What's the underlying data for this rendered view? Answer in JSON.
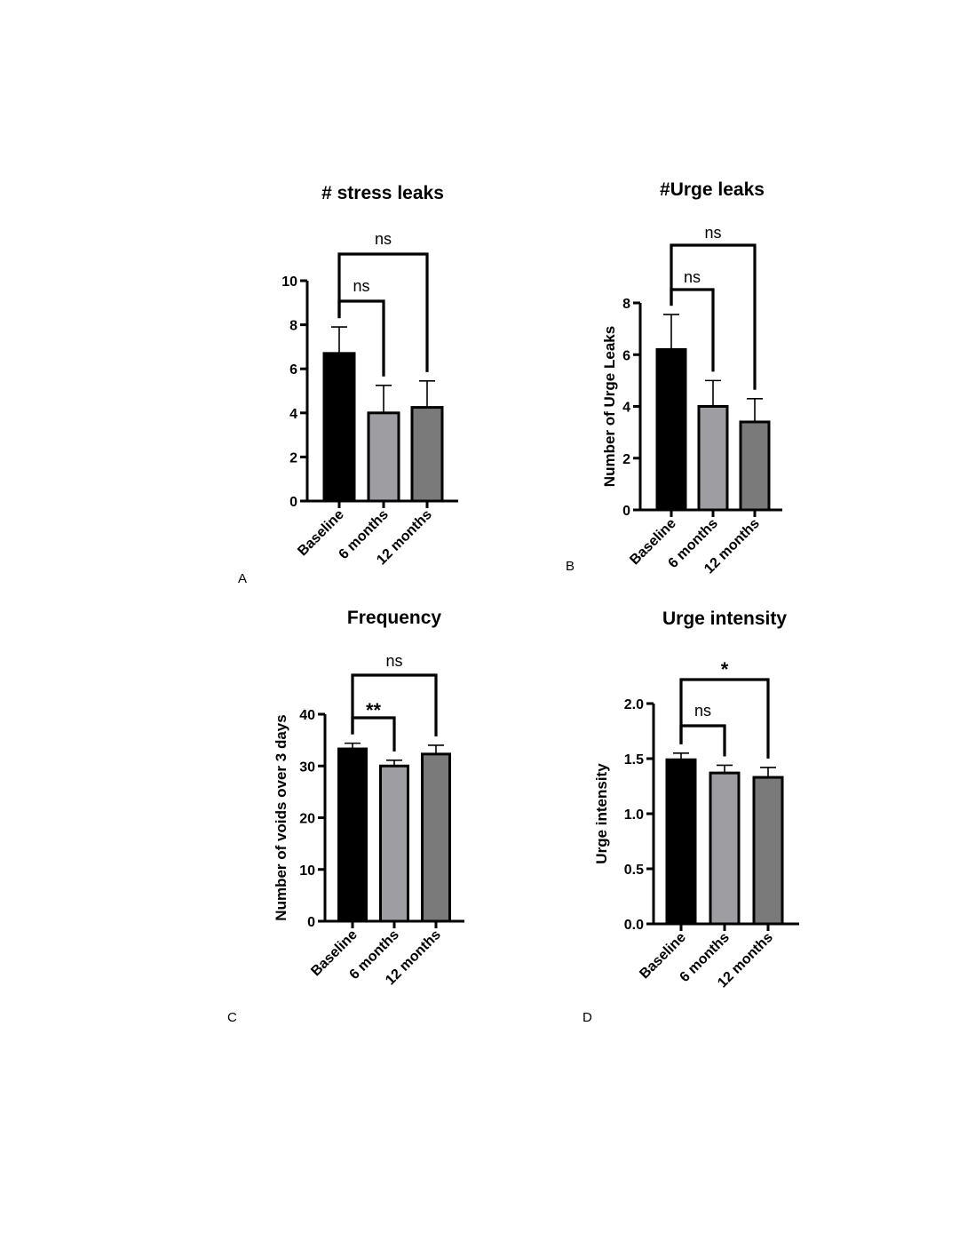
{
  "chart_data": [
    {
      "panel": "A",
      "type": "bar",
      "title": "# stress leaks",
      "ylabel": "",
      "categories": [
        "Baseline",
        "6 months",
        "12 months"
      ],
      "values": [
        6.7,
        4.0,
        4.25
      ],
      "errors": [
        1.2,
        1.25,
        1.2
      ],
      "ylim": [
        0,
        10
      ],
      "yticks": [
        "0",
        "2",
        "4",
        "6",
        "8",
        "10"
      ],
      "bar_colors": [
        "#000000",
        "#9e9ea2",
        "#7a7a7a"
      ],
      "comparisons": [
        {
          "from": "Baseline",
          "to": "6 months",
          "label": "ns"
        },
        {
          "from": "Baseline",
          "to": "12 months",
          "label": "ns"
        }
      ]
    },
    {
      "panel": "B",
      "type": "bar",
      "title": "#Urge leaks",
      "ylabel": "Number of  Urge Leaks",
      "categories": [
        "Baseline",
        "6 months",
        "12 months"
      ],
      "values": [
        6.2,
        4.0,
        3.4
      ],
      "errors": [
        1.35,
        1.0,
        0.9
      ],
      "ylim": [
        0,
        8
      ],
      "yticks": [
        "0",
        "2",
        "4",
        "6",
        "8"
      ],
      "bar_colors": [
        "#000000",
        "#9e9ea2",
        "#7a7a7a"
      ],
      "comparisons": [
        {
          "from": "Baseline",
          "to": "6 months",
          "label": "ns"
        },
        {
          "from": "Baseline",
          "to": "12 months",
          "label": "ns"
        }
      ]
    },
    {
      "panel": "C",
      "type": "bar",
      "title": "Frequency",
      "ylabel": "Number of voids over 3 days",
      "categories": [
        "Baseline",
        "6 months",
        "12 months"
      ],
      "values": [
        33.3,
        30.0,
        32.3
      ],
      "errors": [
        1.1,
        1.1,
        1.7
      ],
      "ylim": [
        0,
        40
      ],
      "yticks": [
        "0",
        "10",
        "20",
        "30",
        "40"
      ],
      "bar_colors": [
        "#000000",
        "#9e9ea2",
        "#7a7a7a"
      ],
      "comparisons": [
        {
          "from": "Baseline",
          "to": "6 months",
          "label": "**"
        },
        {
          "from": "Baseline",
          "to": "12 months",
          "label": "ns"
        }
      ]
    },
    {
      "panel": "D",
      "type": "bar",
      "title": "Urge intensity",
      "ylabel": "Urge intensity",
      "categories": [
        "Baseline",
        "6 months",
        "12 months"
      ],
      "values": [
        1.49,
        1.37,
        1.33
      ],
      "errors": [
        0.06,
        0.07,
        0.09
      ],
      "ylim": [
        0,
        2.0
      ],
      "yticks": [
        "0.0",
        "0.5",
        "1.0",
        "1.5",
        "2.0"
      ],
      "bar_colors": [
        "#000000",
        "#9e9ea2",
        "#7a7a7a"
      ],
      "comparisons": [
        {
          "from": "Baseline",
          "to": "6 months",
          "label": "ns"
        },
        {
          "from": "Baseline",
          "to": "12 months",
          "label": "*"
        }
      ]
    }
  ]
}
